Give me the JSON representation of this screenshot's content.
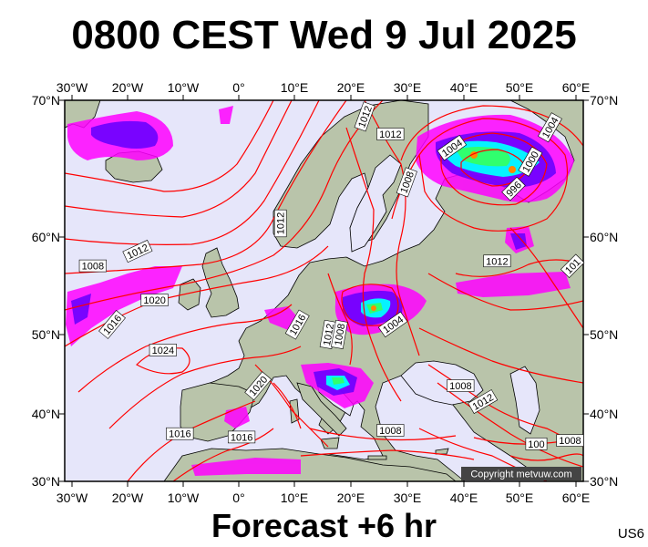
{
  "title": "0800 CEST Wed 9 Jul 2025",
  "footer": "Forecast +6 hr",
  "model_code": "US6",
  "copyright": "Copyright metvuw.com",
  "colors": {
    "sea": "#e6e6fa",
    "land": "#b9c4aa",
    "isobar": "#ff0000",
    "coast": "#000000",
    "precip_light": "#ff00ff",
    "precip_mid": "#6a00ff",
    "precip_heavy": "#00ffff"
  },
  "axes": {
    "top_lon": [
      "30°W",
      "20°W",
      "10°W",
      "0°",
      "10°E",
      "20°E",
      "30°E",
      "40°E",
      "50°E",
      "60°E"
    ],
    "bottom_lon": [
      "30°W",
      "20°W",
      "10°W",
      "0°",
      "10°E",
      "20°E",
      "30°E",
      "40°E",
      "50°E",
      "60°E"
    ],
    "left_lat": [
      "70°N",
      "60°N",
      "50°N",
      "40°N",
      "30°N"
    ],
    "right_lat": [
      "70°N",
      "60°N",
      "50°N",
      "40°N",
      "30°N"
    ]
  },
  "isobar_labels": [
    {
      "text": "1012",
      "lon": 22.5,
      "lat": 68.8,
      "rot": -70
    },
    {
      "text": "1012",
      "lon": 27.0,
      "lat": 67.5,
      "rot": 0
    },
    {
      "text": "1004",
      "lon": 38.0,
      "lat": 66.5,
      "rot": -35
    },
    {
      "text": "1004",
      "lon": 55.5,
      "lat": 68.0,
      "rot": -60
    },
    {
      "text": "1000",
      "lon": 52.0,
      "lat": 65.5,
      "rot": -60
    },
    {
      "text": "996",
      "lon": 49.0,
      "lat": 63.5,
      "rot": -45
    },
    {
      "text": "1008",
      "lon": 30.0,
      "lat": 64.0,
      "rot": -70
    },
    {
      "text": "1012",
      "lon": 7.5,
      "lat": 61.0,
      "rot": -90
    },
    {
      "text": "1012",
      "lon": -18.0,
      "lat": 58.5,
      "rot": -25
    },
    {
      "text": "1008",
      "lon": -26.0,
      "lat": 57.0,
      "rot": 0
    },
    {
      "text": "1020",
      "lon": -15.0,
      "lat": 53.5,
      "rot": 0
    },
    {
      "text": "1016",
      "lon": -22.5,
      "lat": 51.0,
      "rot": -50
    },
    {
      "text": "1024",
      "lon": -13.5,
      "lat": 48.0,
      "rot": 0
    },
    {
      "text": "1016",
      "lon": 10.5,
      "lat": 51.0,
      "rot": -60
    },
    {
      "text": "1012",
      "lon": 16.0,
      "lat": 50.0,
      "rot": -80
    },
    {
      "text": "1008",
      "lon": 18.0,
      "lat": 50.0,
      "rot": -80
    },
    {
      "text": "1004",
      "lon": 27.5,
      "lat": 51.0,
      "rot": -35
    },
    {
      "text": "1012",
      "lon": 46.0,
      "lat": 57.5,
      "rot": 0
    },
    {
      "text": "101",
      "lon": 59.5,
      "lat": 57.0,
      "rot": -45
    },
    {
      "text": "1020",
      "lon": 3.5,
      "lat": 43.5,
      "rot": -50
    },
    {
      "text": "1008",
      "lon": 39.5,
      "lat": 43.5,
      "rot": 0
    },
    {
      "text": "1012",
      "lon": 43.5,
      "lat": 41.5,
      "rot": -30
    },
    {
      "text": "1016",
      "lon": -10.5,
      "lat": 37.0,
      "rot": 0
    },
    {
      "text": "1016",
      "lon": 0.5,
      "lat": 36.5,
      "rot": 0
    },
    {
      "text": "1008",
      "lon": 27.0,
      "lat": 37.5,
      "rot": 0
    },
    {
      "text": "1008",
      "lon": 59.0,
      "lat": 36.0,
      "rot": 0
    },
    {
      "text": "100",
      "lon": 53.0,
      "lat": 35.5,
      "rot": 0
    }
  ]
}
